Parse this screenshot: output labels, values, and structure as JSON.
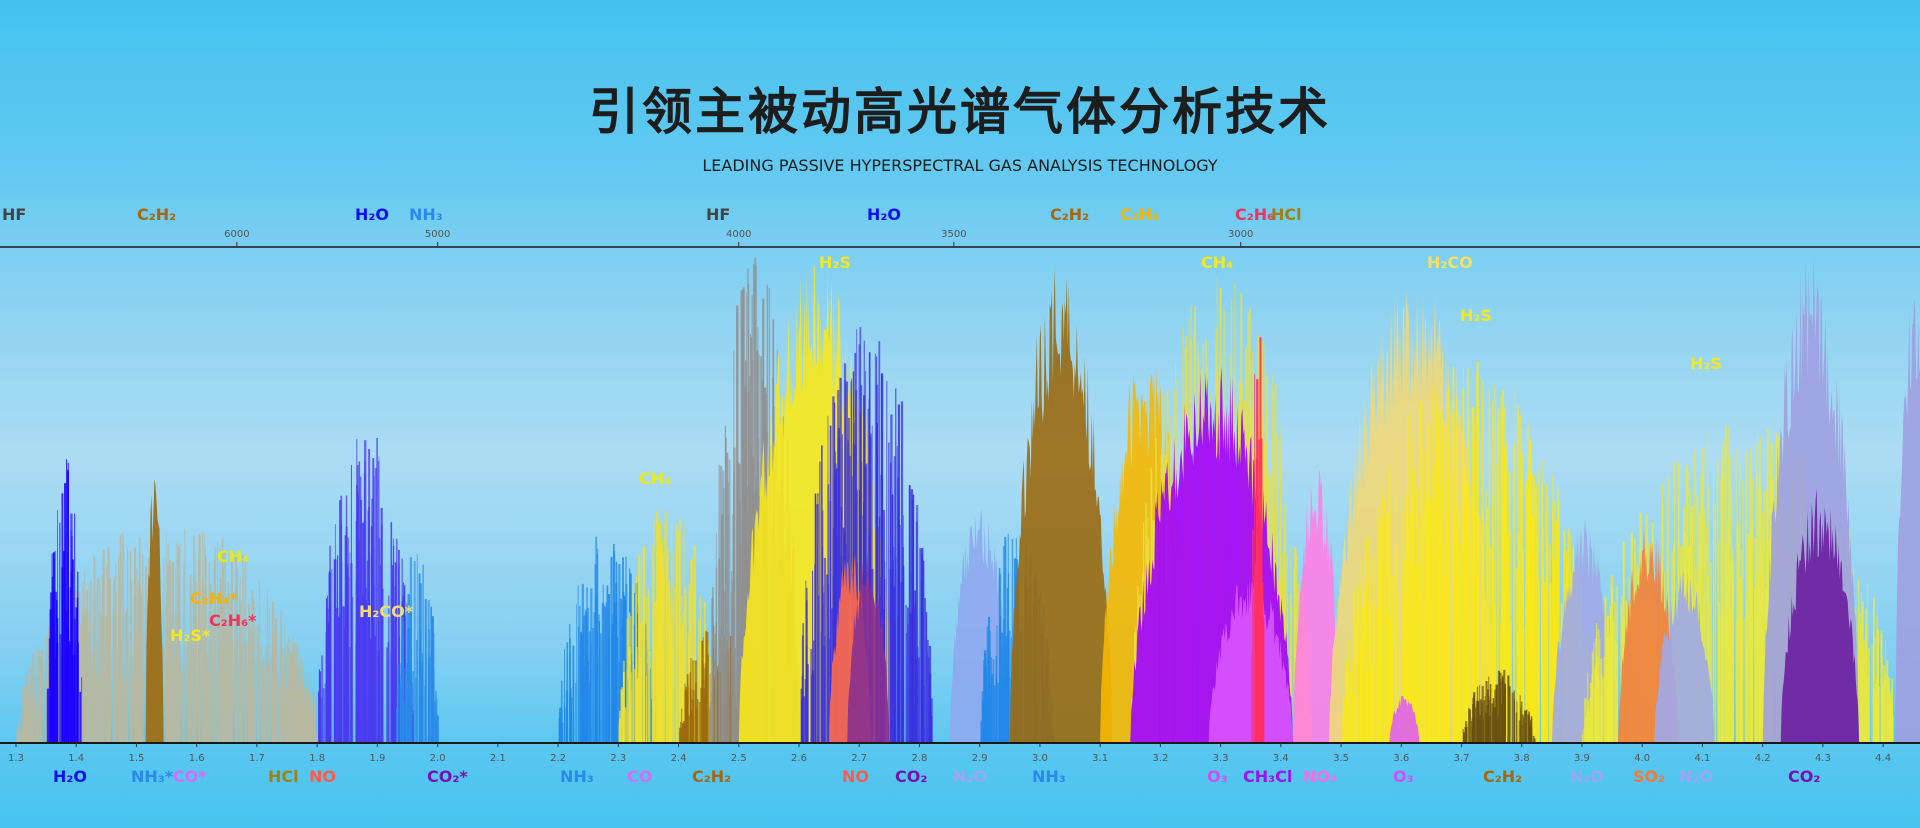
{
  "header": {
    "title": "引领主被动高光谱气体分析技术",
    "subtitle": "LEADING PASSIVE HYPERSPECTRAL GAS ANALYSIS TECHNOLOGY"
  },
  "chart_data": {
    "type": "area",
    "title": "",
    "x_bottom": {
      "unit": "µm",
      "range": [
        1.3,
        4.45
      ],
      "ticks": [
        "1.3",
        "1.4",
        "1.5",
        "1.6",
        "1.7",
        "1.8",
        "1.9",
        "2.0",
        "2.1",
        "2.2",
        "2.3",
        "2.4",
        "2.5",
        "2.6",
        "2.7",
        "2.8",
        "2.9",
        "3.0",
        "3.1",
        "3.2",
        "3.3",
        "3.4",
        "3.5",
        "3.6",
        "3.7",
        "3.8",
        "3.9",
        "4.0",
        "4.1",
        "4.2",
        "4.3",
        "4.4"
      ]
    },
    "x_top": {
      "unit": "cm-1",
      "ticks": [
        "6000",
        "5000",
        "4000",
        "3500",
        "3000"
      ]
    },
    "top_labels": [
      {
        "text": "HF",
        "color": "#444444"
      },
      {
        "text": "C₂H₂",
        "color": "#a8660a"
      },
      {
        "text": "H₂O",
        "color": "#1010ee"
      },
      {
        "text": "NH₃",
        "color": "#2a8ae8"
      },
      {
        "text": "HF",
        "color": "#444444"
      },
      {
        "text": "H₂O",
        "color": "#1010ee"
      },
      {
        "text": "C₂H₂",
        "color": "#a8660a"
      },
      {
        "text": "C₂H₄",
        "color": "#f5b400"
      },
      {
        "text": "C₂H₆",
        "color": "#f0325a"
      },
      {
        "text": "HCl",
        "color": "#a08010"
      }
    ],
    "bottom_labels": [
      {
        "text": "H₂O",
        "color": "#1010ee"
      },
      {
        "text": "NH₃*",
        "color": "#2a8ae8"
      },
      {
        "text": "CO*",
        "color": "#d070f0"
      },
      {
        "text": "HCl",
        "color": "#a08010"
      },
      {
        "text": "NO",
        "color": "#ff5a4a"
      },
      {
        "text": "CO₂*",
        "color": "#7a10b0"
      },
      {
        "text": "NH₃",
        "color": "#2a8ae8"
      },
      {
        "text": "CO",
        "color": "#d070f0"
      },
      {
        "text": "C₂H₂",
        "color": "#a8660a"
      },
      {
        "text": "NO",
        "color": "#ff5a4a"
      },
      {
        "text": "CO₂",
        "color": "#7a10b0"
      },
      {
        "text": "N₂O",
        "color": "#9aa8f0"
      },
      {
        "text": "NH₃",
        "color": "#2a8ae8"
      },
      {
        "text": "O₃",
        "color": "#d050f0"
      },
      {
        "text": "CH₃Cl",
        "color": "#a010f0"
      },
      {
        "text": "NO₂",
        "color": "#f070e0"
      },
      {
        "text": "O₃",
        "color": "#d050f0"
      },
      {
        "text": "C₂H₂",
        "color": "#a8660a"
      },
      {
        "text": "N₂O",
        "color": "#9aa8f0"
      },
      {
        "text": "SO₂",
        "color": "#f07a3a"
      },
      {
        "text": "N₂O",
        "color": "#9aa8f0"
      },
      {
        "text": "CO₂",
        "color": "#7a10b0"
      }
    ],
    "plot_labels": [
      {
        "text": "H₂S",
        "color": "#f5e820"
      },
      {
        "text": "CH₄",
        "color": "#f5e820"
      },
      {
        "text": "H₂CO",
        "color": "#f5e060"
      },
      {
        "text": "H₂S",
        "color": "#f5e820"
      },
      {
        "text": "H₂S",
        "color": "#f5e820"
      },
      {
        "text": "CH₄",
        "color": "#e8e820"
      },
      {
        "text": "CH₄",
        "color": "#e8e820"
      },
      {
        "text": "C₂H₄*",
        "color": "#f5b400"
      },
      {
        "text": "C₂H₆*",
        "color": "#f0325a"
      },
      {
        "text": "H₂S*",
        "color": "#f5e820"
      },
      {
        "text": "H₂CO*",
        "color": "#f0dc70"
      }
    ],
    "bands": [
      {
        "gas": "background",
        "range": [
          1.3,
          1.8
        ],
        "peak": 0.45,
        "style": "lines",
        "color": "#b8b8a0"
      },
      {
        "gas": "H2O",
        "range": [
          1.35,
          1.41
        ],
        "peak": 0.58,
        "style": "lines",
        "color": "#1a00ff"
      },
      {
        "gas": "C2H2",
        "range": [
          1.515,
          1.545
        ],
        "peak": 0.57,
        "style": "fill",
        "color": "#9b6a0f"
      },
      {
        "gas": "H2O",
        "range": [
          1.8,
          1.96
        ],
        "peak": 0.64,
        "style": "lines",
        "color": "#4a3af0"
      },
      {
        "gas": "NH3",
        "range": [
          1.93,
          2.0
        ],
        "peak": 0.4,
        "style": "lines",
        "color": "#2a8ae8"
      },
      {
        "gas": "NH3",
        "range": [
          2.2,
          2.36
        ],
        "peak": 0.43,
        "style": "lines",
        "color": "#2288e8"
      },
      {
        "gas": "CH4",
        "range": [
          2.3,
          2.46
        ],
        "peak": 0.5,
        "style": "lines",
        "color": "#f0e030"
      },
      {
        "gas": "C2H2",
        "range": [
          2.4,
          2.52
        ],
        "peak": 0.25,
        "style": "lines",
        "color": "#9b6a0f"
      },
      {
        "gas": "HF",
        "range": [
          2.45,
          2.6
        ],
        "peak": 0.99,
        "style": "lines",
        "color": "#909090"
      },
      {
        "gas": "H2S",
        "range": [
          2.5,
          2.76
        ],
        "peak": 0.97,
        "style": "fill",
        "color": "#f8e81a"
      },
      {
        "gas": "H2O",
        "range": [
          2.6,
          2.82
        ],
        "peak": 0.85,
        "style": "lines",
        "color": "#3a30e0"
      },
      {
        "gas": "NO",
        "range": [
          2.65,
          2.72
        ],
        "peak": 0.4,
        "style": "fill",
        "color": "#ff6a4a"
      },
      {
        "gas": "CO2",
        "range": [
          2.68,
          2.75
        ],
        "peak": 0.4,
        "style": "fill",
        "color": "#8a3090"
      },
      {
        "gas": "N2O",
        "range": [
          2.85,
          2.95
        ],
        "peak": 0.5,
        "style": "fill",
        "color": "#8fa8f0"
      },
      {
        "gas": "NH3",
        "range": [
          2.9,
          3.02
        ],
        "peak": 0.45,
        "style": "lines",
        "color": "#2288e8"
      },
      {
        "gas": "C2H2",
        "range": [
          2.95,
          3.12
        ],
        "peak": 0.99,
        "style": "fill",
        "color": "#9b6a0f"
      },
      {
        "gas": "C2H4",
        "range": [
          3.1,
          3.25
        ],
        "peak": 0.8,
        "style": "fill",
        "color": "#f5b800"
      },
      {
        "gas": "CH4",
        "range": [
          3.15,
          3.45
        ],
        "peak": 0.95,
        "style": "lines",
        "color": "#e8e040"
      },
      {
        "gas": "CH3Cl",
        "range": [
          3.15,
          3.42
        ],
        "peak": 0.78,
        "style": "fill",
        "color": "#a000ff"
      },
      {
        "gas": "O3",
        "range": [
          3.28,
          3.42
        ],
        "peak": 0.35,
        "style": "fill",
        "color": "#d855ff"
      },
      {
        "gas": "HCl",
        "range": [
          3.35,
          3.37
        ],
        "peak": 0.95,
        "style": "lines",
        "color": "#ff3060"
      },
      {
        "gas": "NO2",
        "range": [
          3.42,
          3.5
        ],
        "peak": 0.56,
        "style": "fill",
        "color": "#ff80e6"
      },
      {
        "gas": "H2CO",
        "range": [
          3.48,
          3.76
        ],
        "peak": 0.95,
        "style": "fill",
        "color": "#f0d878"
      },
      {
        "gas": "H2S",
        "range": [
          3.5,
          3.92
        ],
        "peak": 0.78,
        "style": "lines",
        "color": "#f8e81a"
      },
      {
        "gas": "O3",
        "range": [
          3.58,
          3.63
        ],
        "peak": 0.1,
        "style": "fill",
        "color": "#e060f0"
      },
      {
        "gas": "C2H2",
        "range": [
          3.7,
          3.82
        ],
        "peak": 0.15,
        "style": "lines",
        "color": "#6a5010"
      },
      {
        "gas": "N2O",
        "range": [
          3.85,
          3.96
        ],
        "peak": 0.45,
        "style": "fill",
        "color": "#a0a8e8"
      },
      {
        "gas": "H2S",
        "range": [
          3.9,
          4.42
        ],
        "peak": 0.65,
        "style": "lines",
        "color": "#e8e840"
      },
      {
        "gas": "SO2",
        "range": [
          3.96,
          4.06
        ],
        "peak": 0.45,
        "style": "fill",
        "color": "#f08040"
      },
      {
        "gas": "N2O",
        "range": [
          4.02,
          4.12
        ],
        "peak": 0.35,
        "style": "fill",
        "color": "#a0a8e8"
      },
      {
        "gas": "CO2",
        "range": [
          4.2,
          4.36
        ],
        "peak": 0.99,
        "style": "fill",
        "color": "#9fa0e0"
      },
      {
        "gas": "CO2",
        "range": [
          4.23,
          4.36
        ],
        "peak": 0.52,
        "style": "fill",
        "color": "#6a1fa0"
      },
      {
        "gas": "CO2",
        "range": [
          4.42,
          4.48
        ],
        "peak": 0.93,
        "style": "fill",
        "color": "#9fa0e0"
      }
    ]
  }
}
